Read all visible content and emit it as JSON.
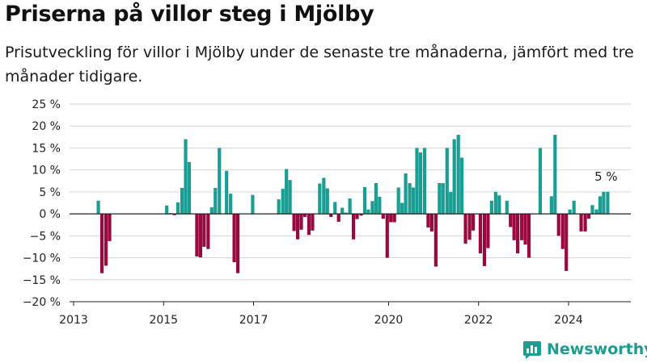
{
  "title": "Priserna på villor steg i Mjölby",
  "subtitle": "Prisutveckling för villor i Mjölby under de senaste tre månaderna, jämfört med tre månader tidigare.",
  "brand": "Newsworthy",
  "colors": {
    "positive": "#1a9e93",
    "negative": "#98093f",
    "grid": "#d6d6d6",
    "brand": "#1d9c90"
  },
  "chart_data": {
    "type": "bar",
    "title": "Priserna på villor steg i Mjölby",
    "xlabel": "",
    "ylabel": "",
    "ylim": [
      -20,
      25
    ],
    "y_ticks": [
      "25 %",
      "20 %",
      "15 %",
      "10 %",
      "5 %",
      "0 %",
      "−5 %",
      "−10 %",
      "−15 %",
      "−20 %"
    ],
    "x_ticks": [
      "2013",
      "2015",
      "2017",
      "2020",
      "2022",
      "2024"
    ],
    "grid": true,
    "annotation": {
      "text": "5 %",
      "attached_to": "last bar"
    },
    "bars": [
      {
        "t": 2013.55,
        "v": 3
      },
      {
        "t": 2013.63,
        "v": -13.5
      },
      {
        "t": 2013.72,
        "v": -11.8
      },
      {
        "t": 2013.8,
        "v": -6.2
      },
      {
        "t": 2015.07,
        "v": 1.9
      },
      {
        "t": 2015.16,
        "v": 0.2
      },
      {
        "t": 2015.24,
        "v": -0.3
      },
      {
        "t": 2015.32,
        "v": 2.6
      },
      {
        "t": 2015.41,
        "v": 5.9
      },
      {
        "t": 2015.49,
        "v": 17
      },
      {
        "t": 2015.57,
        "v": 11.8
      },
      {
        "t": 2015.74,
        "v": -9.7
      },
      {
        "t": 2015.82,
        "v": -9.9
      },
      {
        "t": 2015.9,
        "v": -7.5
      },
      {
        "t": 2015.99,
        "v": -8
      },
      {
        "t": 2016.07,
        "v": 1.5
      },
      {
        "t": 2016.15,
        "v": 5.9
      },
      {
        "t": 2016.24,
        "v": 15
      },
      {
        "t": 2016.4,
        "v": 9.8
      },
      {
        "t": 2016.49,
        "v": 4.6
      },
      {
        "t": 2016.57,
        "v": -11
      },
      {
        "t": 2016.65,
        "v": -13.5
      },
      {
        "t": 2016.98,
        "v": 4.3
      },
      {
        "t": 2017.56,
        "v": 3.3
      },
      {
        "t": 2017.65,
        "v": 5.7
      },
      {
        "t": 2017.73,
        "v": 10.2
      },
      {
        "t": 2017.81,
        "v": 7.7
      },
      {
        "t": 2017.9,
        "v": -3.9
      },
      {
        "t": 2017.98,
        "v": -5.8
      },
      {
        "t": 2018.06,
        "v": -3.6
      },
      {
        "t": 2018.14,
        "v": -0.7
      },
      {
        "t": 2018.23,
        "v": -4.8
      },
      {
        "t": 2018.31,
        "v": -3.8
      },
      {
        "t": 2018.47,
        "v": 6.9
      },
      {
        "t": 2018.56,
        "v": 8.2
      },
      {
        "t": 2018.64,
        "v": 5.8
      },
      {
        "t": 2018.72,
        "v": -0.7
      },
      {
        "t": 2018.81,
        "v": 2.7
      },
      {
        "t": 2018.89,
        "v": -1.8
      },
      {
        "t": 2018.97,
        "v": 1.4
      },
      {
        "t": 2019.05,
        "v": 0.3
      },
      {
        "t": 2019.14,
        "v": 3.5
      },
      {
        "t": 2019.22,
        "v": -5.8
      },
      {
        "t": 2019.3,
        "v": -1.2
      },
      {
        "t": 2019.39,
        "v": -0.4
      },
      {
        "t": 2019.47,
        "v": 6.1
      },
      {
        "t": 2019.55,
        "v": 1
      },
      {
        "t": 2019.64,
        "v": 2.9
      },
      {
        "t": 2019.72,
        "v": 7
      },
      {
        "t": 2019.8,
        "v": 3.9
      },
      {
        "t": 2019.88,
        "v": -1.1
      },
      {
        "t": 2019.97,
        "v": -10
      },
      {
        "t": 2020.05,
        "v": -1.9
      },
      {
        "t": 2020.13,
        "v": -1.9
      },
      {
        "t": 2020.22,
        "v": 6
      },
      {
        "t": 2020.3,
        "v": 2.5
      },
      {
        "t": 2020.38,
        "v": 9.2
      },
      {
        "t": 2020.47,
        "v": 7
      },
      {
        "t": 2020.55,
        "v": 6
      },
      {
        "t": 2020.63,
        "v": 15
      },
      {
        "t": 2020.71,
        "v": 14
      },
      {
        "t": 2020.8,
        "v": 15
      },
      {
        "t": 2020.88,
        "v": -3.1
      },
      {
        "t": 2020.96,
        "v": -4
      },
      {
        "t": 2021.05,
        "v": -12
      },
      {
        "t": 2021.13,
        "v": 7
      },
      {
        "t": 2021.21,
        "v": 7
      },
      {
        "t": 2021.3,
        "v": 15
      },
      {
        "t": 2021.38,
        "v": 5
      },
      {
        "t": 2021.46,
        "v": 17
      },
      {
        "t": 2021.55,
        "v": 18
      },
      {
        "t": 2021.63,
        "v": 12.8
      },
      {
        "t": 2021.71,
        "v": -6.8
      },
      {
        "t": 2021.8,
        "v": -5.9
      },
      {
        "t": 2021.88,
        "v": -3.8
      },
      {
        "t": 2022.04,
        "v": -9
      },
      {
        "t": 2022.13,
        "v": -11.9
      },
      {
        "t": 2022.21,
        "v": -7.8
      },
      {
        "t": 2022.29,
        "v": 3
      },
      {
        "t": 2022.38,
        "v": 5
      },
      {
        "t": 2022.46,
        "v": 4.2
      },
      {
        "t": 2022.63,
        "v": 3
      },
      {
        "t": 2022.71,
        "v": -3
      },
      {
        "t": 2022.79,
        "v": -6
      },
      {
        "t": 2022.87,
        "v": -9
      },
      {
        "t": 2022.96,
        "v": -6
      },
      {
        "t": 2023.04,
        "v": -7
      },
      {
        "t": 2023.12,
        "v": -10
      },
      {
        "t": 2023.37,
        "v": 15
      },
      {
        "t": 2023.62,
        "v": 4
      },
      {
        "t": 2023.7,
        "v": 18
      },
      {
        "t": 2023.78,
        "v": -5
      },
      {
        "t": 2023.87,
        "v": -8
      },
      {
        "t": 2023.95,
        "v": -13
      },
      {
        "t": 2024.03,
        "v": 1
      },
      {
        "t": 2024.12,
        "v": 3
      },
      {
        "t": 2024.28,
        "v": -4
      },
      {
        "t": 2024.37,
        "v": -4
      },
      {
        "t": 2024.45,
        "v": -1.1
      },
      {
        "t": 2024.53,
        "v": 2
      },
      {
        "t": 2024.62,
        "v": 1
      },
      {
        "t": 2024.7,
        "v": 4
      },
      {
        "t": 2024.78,
        "v": 5
      },
      {
        "t": 2024.87,
        "v": 5
      }
    ]
  }
}
